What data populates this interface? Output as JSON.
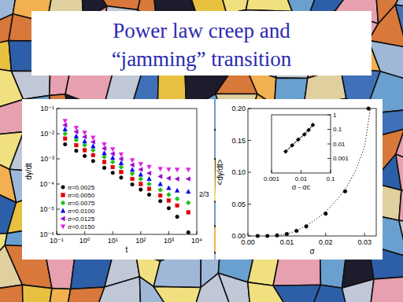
{
  "slide": {
    "title": [
      "Power law creep and",
      "“jamming” transition"
    ]
  },
  "chart_data": [
    {
      "type": "scatter",
      "xlabel": "t",
      "ylabel": "dγ/dt",
      "log": true,
      "xlim": [
        0.1,
        10000
      ],
      "ylim": [
        1e-06,
        0.1
      ],
      "xticks": [
        {
          "value": 0.1,
          "label": "10⁻¹"
        },
        {
          "value": 1,
          "label": "10⁰"
        },
        {
          "value": 10,
          "label": "10¹"
        },
        {
          "value": 100,
          "label": "10²"
        },
        {
          "value": 1000,
          "label": "10³"
        },
        {
          "value": 10000,
          "label": "10⁴"
        }
      ],
      "yticks": [
        {
          "value": 1e-06,
          "label": "10⁻⁶"
        },
        {
          "value": 1e-05,
          "label": "10⁻⁵"
        },
        {
          "value": 0.0001,
          "label": "10⁻⁴"
        },
        {
          "value": 0.001,
          "label": "10⁻³"
        },
        {
          "value": 0.01,
          "label": "10⁻²"
        },
        {
          "value": 0.1,
          "label": "10⁻¹"
        }
      ],
      "x": [
        0.2,
        0.5,
        1,
        2,
        5,
        10,
        20,
        50,
        100,
        200,
        500,
        1000,
        2000,
        5000
      ],
      "series": [
        {
          "name": "σ=0.0025",
          "color": "#000000",
          "marker": "circle",
          "values": [
            0.0038,
            0.0021,
            0.0013,
            0.00082,
            0.00044,
            0.00028,
            0.00018,
            9.6e-05,
            6e-05,
            3.8e-05,
            2.1e-05,
            1.1e-05,
            5e-06,
            1.2e-06
          ]
        },
        {
          "name": "σ=0.0050",
          "color": "#e00000",
          "marker": "square",
          "values": [
            0.0064,
            0.0035,
            0.0022,
            0.0014,
            0.00075,
            0.00047,
            0.0003,
            0.00016,
            0.0001,
            6.4e-05,
            3.5e-05,
            2.2e-05,
            1.4e-05,
            7.5e-06
          ]
        },
        {
          "name": "σ=0.0075",
          "color": "#22c022",
          "marker": "diamond",
          "values": [
            0.01,
            0.0056,
            0.0035,
            0.0022,
            0.0012,
            0.00075,
            0.00047,
            0.00026,
            0.00016,
            0.0001,
            5.8e-05,
            3.8e-05,
            2.6e-05,
            1.8e-05
          ]
        },
        {
          "name": "σ=0.0100",
          "color": "#0000ee",
          "marker": "triangle-up",
          "values": [
            0.015,
            0.0079,
            0.005,
            0.0032,
            0.0017,
            0.0011,
            0.00068,
            0.00037,
            0.00024,
            0.00016,
            0.0001,
            7e-05,
            5.5e-05,
            5e-05
          ]
        },
        {
          "name": "σ=0.0125",
          "color": "#9900cc",
          "marker": "triangle-left",
          "values": [
            0.022,
            0.012,
            0.0075,
            0.0047,
            0.0026,
            0.0016,
            0.001,
            0.00057,
            0.00038,
            0.00027,
            0.0002,
            0.00017,
            0.00016,
            0.00016
          ]
        },
        {
          "name": "σ=0.0150",
          "color": "#dd22dd",
          "marker": "triangle-down",
          "values": [
            0.032,
            0.017,
            0.011,
            0.0069,
            0.0038,
            0.0024,
            0.0015,
            0.00088,
            0.00062,
            0.00048,
            0.0004,
            0.00038,
            0.00037,
            0.00037
          ]
        }
      ],
      "legend": "lower left",
      "annotations": [
        {
          "text": "2/3"
        }
      ]
    },
    {
      "type": "scatter",
      "xlabel": "σ",
      "ylabel": "<dγ/dt>",
      "xlim": [
        0,
        0.033
      ],
      "ylim": [
        0,
        0.2
      ],
      "xticks": [
        {
          "value": 0,
          "label": "0.00"
        },
        {
          "value": 0.01,
          "label": "0.01"
        },
        {
          "value": 0.02,
          "label": "0.02"
        },
        {
          "value": 0.03,
          "label": "0.03"
        }
      ],
      "yticks": [
        {
          "value": 0,
          "label": "0.00"
        },
        {
          "value": 0.05,
          "label": "0.05"
        },
        {
          "value": 0.1,
          "label": "0.10"
        },
        {
          "value": 0.15,
          "label": "0.15"
        },
        {
          "value": 0.2,
          "label": "0.20"
        }
      ],
      "series": [
        {
          "color": "#000000",
          "marker": "circle",
          "x": [
            0.0025,
            0.005,
            0.0075,
            0.01,
            0.0125,
            0.015,
            0.02,
            0.025,
            0.031
          ],
          "values": [
            0,
            0,
            0.0008,
            0.003,
            0.008,
            0.015,
            0.035,
            0.07,
            0.2
          ]
        },
        {
          "type": "line",
          "color": "#000000",
          "line_style": "dotted",
          "x": [
            0.007,
            0.01,
            0.0125,
            0.015,
            0.0175,
            0.02,
            0.0225,
            0.025,
            0.0275,
            0.03,
            0.0315
          ],
          "values": [
            0,
            0.003,
            0.008,
            0.016,
            0.026,
            0.038,
            0.054,
            0.073,
            0.1,
            0.14,
            0.2
          ]
        }
      ]
    },
    {
      "type": "line",
      "xlabel": "σ - σc",
      "log": true,
      "xlim": [
        0.001,
        0.1
      ],
      "ylim": [
        0.0001,
        1
      ],
      "xticks": [
        0.001,
        0.01,
        0.1
      ],
      "yticks": [
        0.001,
        0.01,
        0.1,
        1
      ],
      "series": [
        {
          "color": "#000000",
          "marker": "diamond",
          "line_style": "solid",
          "x": [
            0.003,
            0.005,
            0.008,
            0.013,
            0.018,
            0.025
          ],
          "values": [
            0.003,
            0.008,
            0.02,
            0.045,
            0.09,
            0.2
          ]
        }
      ]
    }
  ]
}
